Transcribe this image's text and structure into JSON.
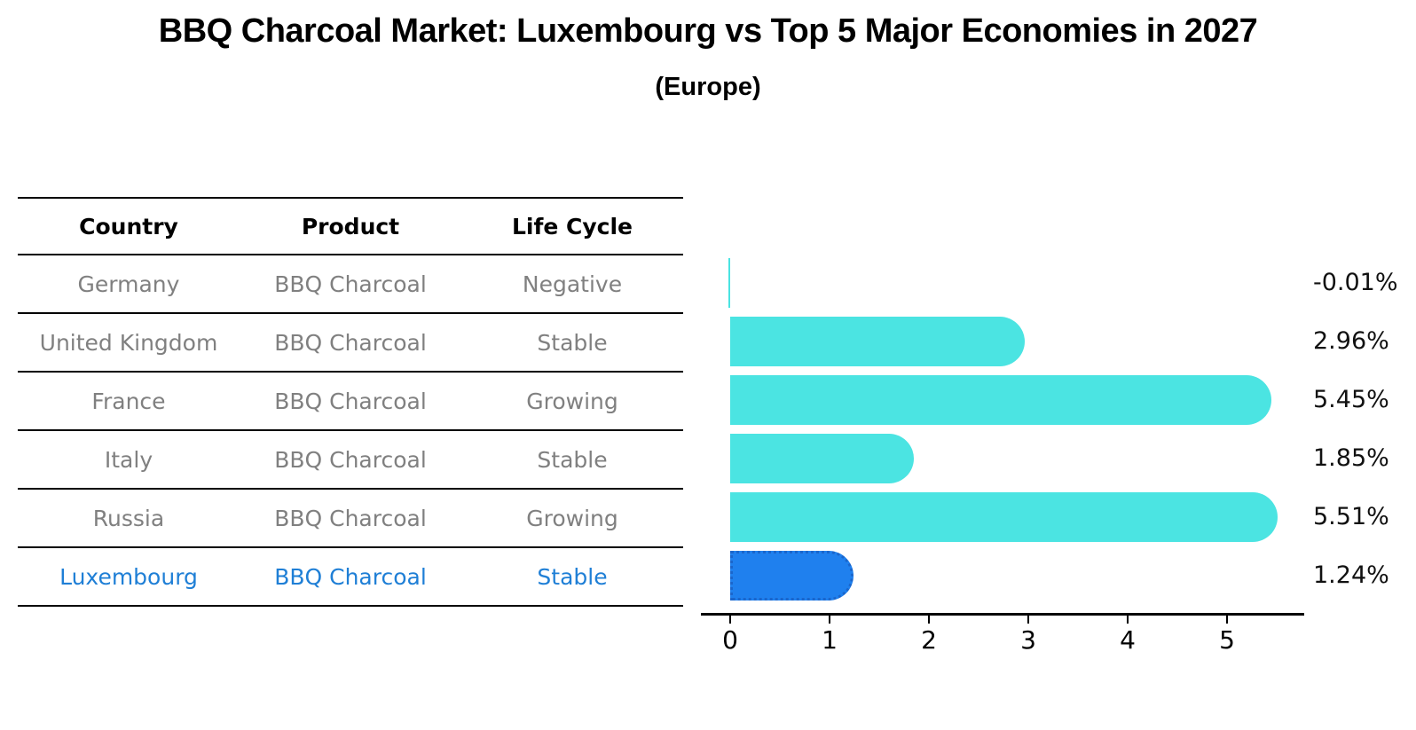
{
  "title": "BBQ Charcoal Market: Luxembourg vs Top 5 Major Economies in 2027",
  "subtitle": "(Europe)",
  "table": {
    "headers": [
      "Country",
      "Product",
      "Life Cycle"
    ],
    "rows": [
      {
        "country": "Germany",
        "product": "BBQ Charcoal",
        "life_cycle": "Negative",
        "highlight": false
      },
      {
        "country": "United Kingdom",
        "product": "BBQ Charcoal",
        "life_cycle": "Stable",
        "highlight": false
      },
      {
        "country": "France",
        "product": "BBQ Charcoal",
        "life_cycle": "Growing",
        "highlight": false
      },
      {
        "country": "Italy",
        "product": "BBQ Charcoal",
        "life_cycle": "Stable",
        "highlight": false
      },
      {
        "country": "Russia",
        "product": "BBQ Charcoal",
        "life_cycle": "Growing",
        "highlight": false
      },
      {
        "country": "Luxembourg",
        "product": "BBQ Charcoal",
        "life_cycle": "Stable",
        "highlight": true
      }
    ]
  },
  "chart_data": {
    "type": "bar",
    "orientation": "horizontal",
    "title": "BBQ Charcoal Market: Luxembourg vs Top 5 Major Economies in 2027",
    "subtitle": "(Europe)",
    "categories": [
      "Germany",
      "United Kingdom",
      "France",
      "Italy",
      "Russia",
      "Luxembourg"
    ],
    "values": [
      -0.01,
      2.96,
      5.45,
      1.85,
      5.51,
      1.24
    ],
    "value_labels": [
      "-0.01%",
      "2.96%",
      "5.45%",
      "1.85%",
      "5.51%",
      "1.24%"
    ],
    "highlight_index": 5,
    "x_ticks": [
      "0",
      "1",
      "2",
      "3",
      "4",
      "5"
    ],
    "xlim": [
      -0.3,
      5.8
    ],
    "grid": false,
    "legend": "none",
    "xlabel": "",
    "ylabel": ""
  },
  "colors": {
    "bar": "#4BE4E2",
    "highlight_bar": "#1F80EE",
    "highlight_border": "#1A66CC",
    "table_text": "#808080",
    "highlight_text": "#1F7FD6",
    "header_text": "#000000",
    "axis": "#000000",
    "value_text": "#111111"
  }
}
